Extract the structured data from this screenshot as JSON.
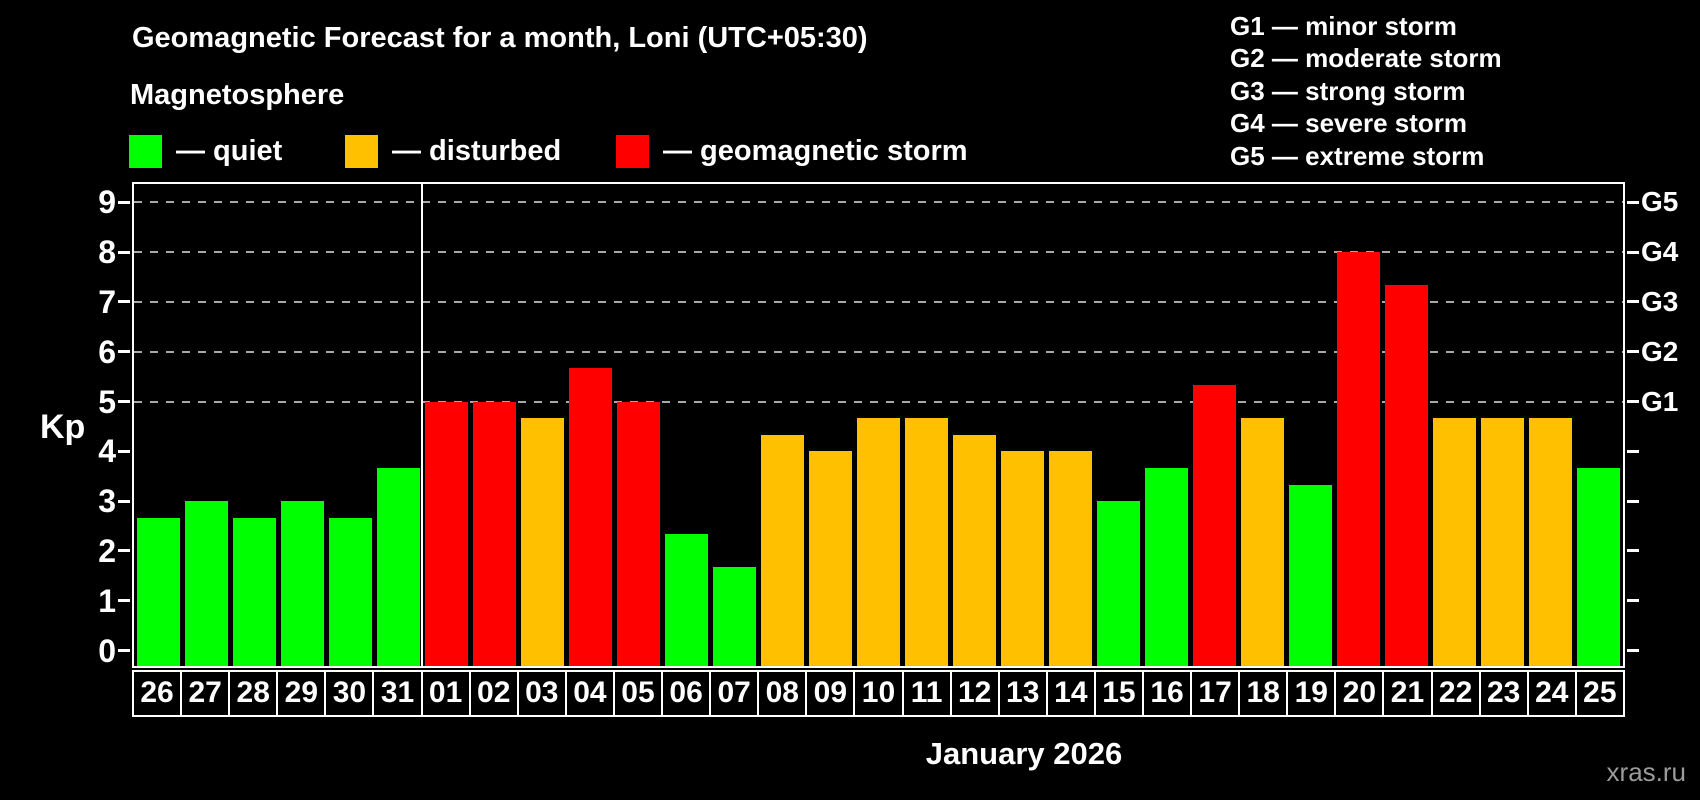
{
  "title": "Geomagnetic Forecast for a month, Loni (UTC+05:30)",
  "subtitle": "Magnetosphere",
  "legend": {
    "items": [
      {
        "name": "quiet",
        "label": "— quiet",
        "color": "#00ff00"
      },
      {
        "name": "disturbed",
        "label": "— disturbed",
        "color": "#ffc000"
      },
      {
        "name": "storm",
        "label": "— geomagnetic storm",
        "color": "#ff0000"
      }
    ]
  },
  "storm_scale": [
    {
      "label": "G1 — minor storm"
    },
    {
      "label": "G2 — moderate storm"
    },
    {
      "label": "G3 — strong storm"
    },
    {
      "label": "G4 — severe storm"
    },
    {
      "label": "G5 — extreme storm"
    }
  ],
  "axes": {
    "y_label": "Kp",
    "y_ticks": [
      0,
      1,
      2,
      3,
      4,
      5,
      6,
      7,
      8,
      9
    ],
    "g_labels": [
      {
        "text": "G1",
        "kp": 5
      },
      {
        "text": "G2",
        "kp": 6
      },
      {
        "text": "G3",
        "kp": 7
      },
      {
        "text": "G4",
        "kp": 8
      },
      {
        "text": "G5",
        "kp": 9
      }
    ],
    "x_label": "January 2026"
  },
  "watermark": "xras.ru",
  "chart_data": {
    "type": "bar",
    "title": "Geomagnetic Forecast for a month, Loni (UTC+05:30)",
    "xlabel": "January 2026",
    "ylabel": "Kp",
    "ylim": [
      0,
      9
    ],
    "grid_levels_kp": [
      5,
      6,
      7,
      8,
      9
    ],
    "legend_position": "top",
    "categories": [
      "26",
      "27",
      "28",
      "29",
      "30",
      "31",
      "01",
      "02",
      "03",
      "04",
      "05",
      "06",
      "07",
      "08",
      "09",
      "10",
      "11",
      "12",
      "13",
      "14",
      "15",
      "16",
      "17",
      "18",
      "19",
      "20",
      "21",
      "22",
      "23",
      "24",
      "25"
    ],
    "values": [
      2.67,
      3.0,
      2.67,
      3.0,
      2.67,
      3.67,
      5.0,
      5.0,
      4.67,
      5.67,
      5.0,
      2.33,
      1.67,
      4.33,
      4.0,
      4.67,
      4.67,
      4.33,
      4.0,
      4.0,
      3.0,
      3.67,
      5.33,
      4.67,
      3.33,
      8.0,
      7.33,
      4.67,
      4.67,
      4.67,
      3.67
    ],
    "statuses": [
      "quiet",
      "quiet",
      "quiet",
      "quiet",
      "quiet",
      "quiet",
      "storm",
      "storm",
      "disturbed",
      "storm",
      "storm",
      "quiet",
      "quiet",
      "disturbed",
      "disturbed",
      "disturbed",
      "disturbed",
      "disturbed",
      "disturbed",
      "disturbed",
      "quiet",
      "quiet",
      "storm",
      "disturbed",
      "quiet",
      "storm",
      "storm",
      "disturbed",
      "disturbed",
      "disturbed",
      "quiet"
    ],
    "status_colors": {
      "quiet": "#00ff00",
      "disturbed": "#ffc000",
      "storm": "#ff0000"
    },
    "separator_after_index": 5
  }
}
